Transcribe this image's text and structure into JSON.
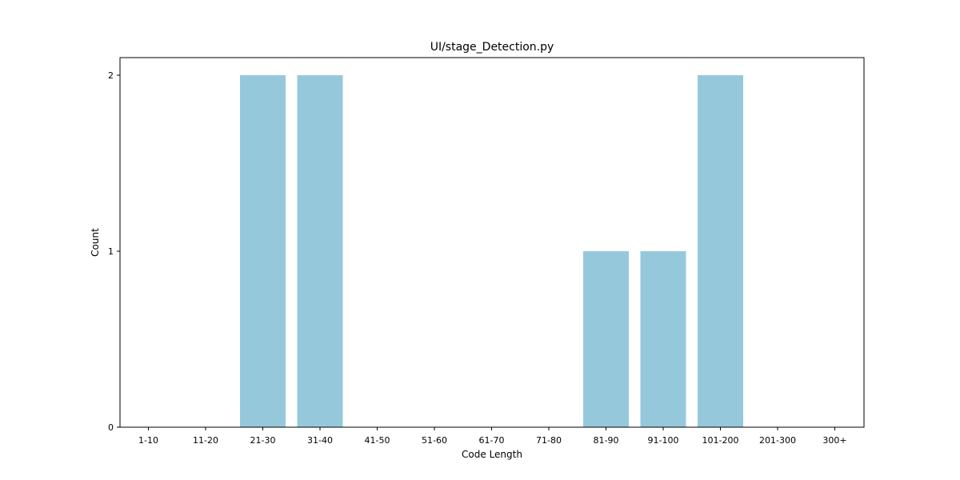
{
  "chart_data": {
    "type": "bar",
    "title": "UI/stage_Detection.py",
    "xlabel": "Code Length",
    "ylabel": "Count",
    "categories": [
      "1-10",
      "11-20",
      "21-30",
      "31-40",
      "41-50",
      "51-60",
      "61-70",
      "71-80",
      "81-90",
      "91-100",
      "101-200",
      "201-300",
      "300+"
    ],
    "values": [
      0,
      0,
      2,
      2,
      0,
      0,
      0,
      0,
      1,
      1,
      2,
      0,
      0
    ],
    "yticks": [
      "0",
      "1",
      "2"
    ],
    "ylim": [
      0,
      2.1
    ],
    "bar_color": "#96c8dc",
    "grid": false
  }
}
